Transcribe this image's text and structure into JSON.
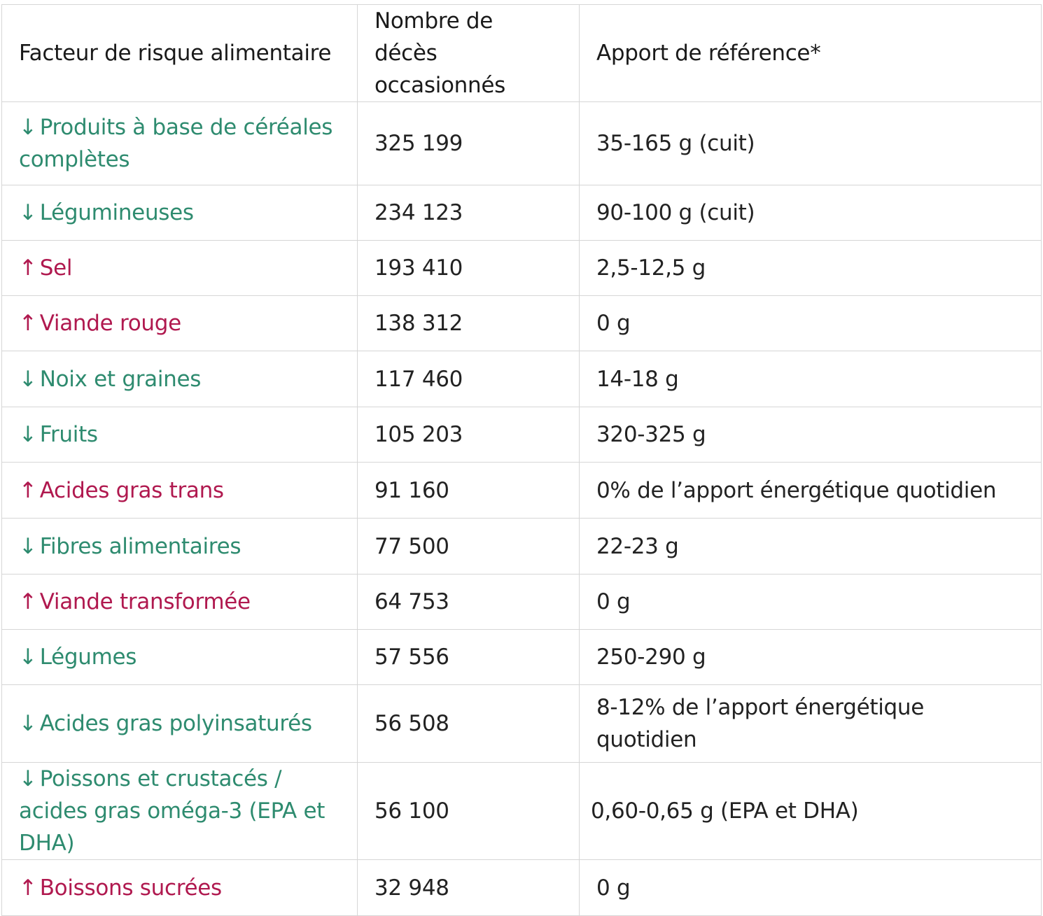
{
  "colors": {
    "protective": "#2e8b6f",
    "harmful": "#b0194f",
    "text": "#222222",
    "border": "#d6d6d6"
  },
  "headers": {
    "factor": "Facteur de risque alimentaire",
    "deaths_line1": "Nombre de décès",
    "deaths_line2": "occasionnés",
    "reference": "Apport de référence*"
  },
  "arrows": {
    "down": "↓",
    "up": "↑"
  },
  "rows": [
    {
      "direction": "down",
      "factor": "Produits à base de céréales complètes",
      "deaths": "325 199",
      "reference": "35-165 g  (cuit)"
    },
    {
      "direction": "down",
      "factor": "Légumineuses",
      "deaths": "234 123",
      "reference": "90-100 g  (cuit)"
    },
    {
      "direction": "up",
      "factor": "Sel",
      "deaths": "193 410",
      "reference": "2,5-12,5 g"
    },
    {
      "direction": "up",
      "factor": "Viande rouge",
      "deaths": "138 312",
      "reference": "0 g"
    },
    {
      "direction": "down",
      "factor": "Noix et graines",
      "deaths": "117 460",
      "reference": "14-18 g"
    },
    {
      "direction": "down",
      "factor": "Fruits",
      "deaths": "105 203",
      "reference": "320-325 g"
    },
    {
      "direction": "up",
      "factor": "Acides gras trans",
      "deaths": "91 160",
      "reference": "0% de l’apport énergétique quotidien"
    },
    {
      "direction": "down",
      "factor": "Fibres alimentaires",
      "deaths": "77 500",
      "reference": "22-23 g"
    },
    {
      "direction": "up",
      "factor": "Viande transformée",
      "deaths": "64 753",
      "reference": "0 g"
    },
    {
      "direction": "down",
      "factor": "Légumes",
      "deaths": "57 556",
      "reference": "250-290 g"
    },
    {
      "direction": "down",
      "factor": "Acides gras polyinsaturés",
      "deaths": "56 508",
      "reference": "8-12% de l’apport énergétique quotidien"
    },
    {
      "direction": "down",
      "factor": "Poissons et crustacés / acides gras oméga-3 (EPA et DHA)",
      "deaths": "56 100",
      "reference": "0,60-0,65 g  (EPA et DHA)"
    },
    {
      "direction": "up",
      "factor": "Boissons sucrées",
      "deaths": "32 948",
      "reference": "0 g"
    }
  ]
}
